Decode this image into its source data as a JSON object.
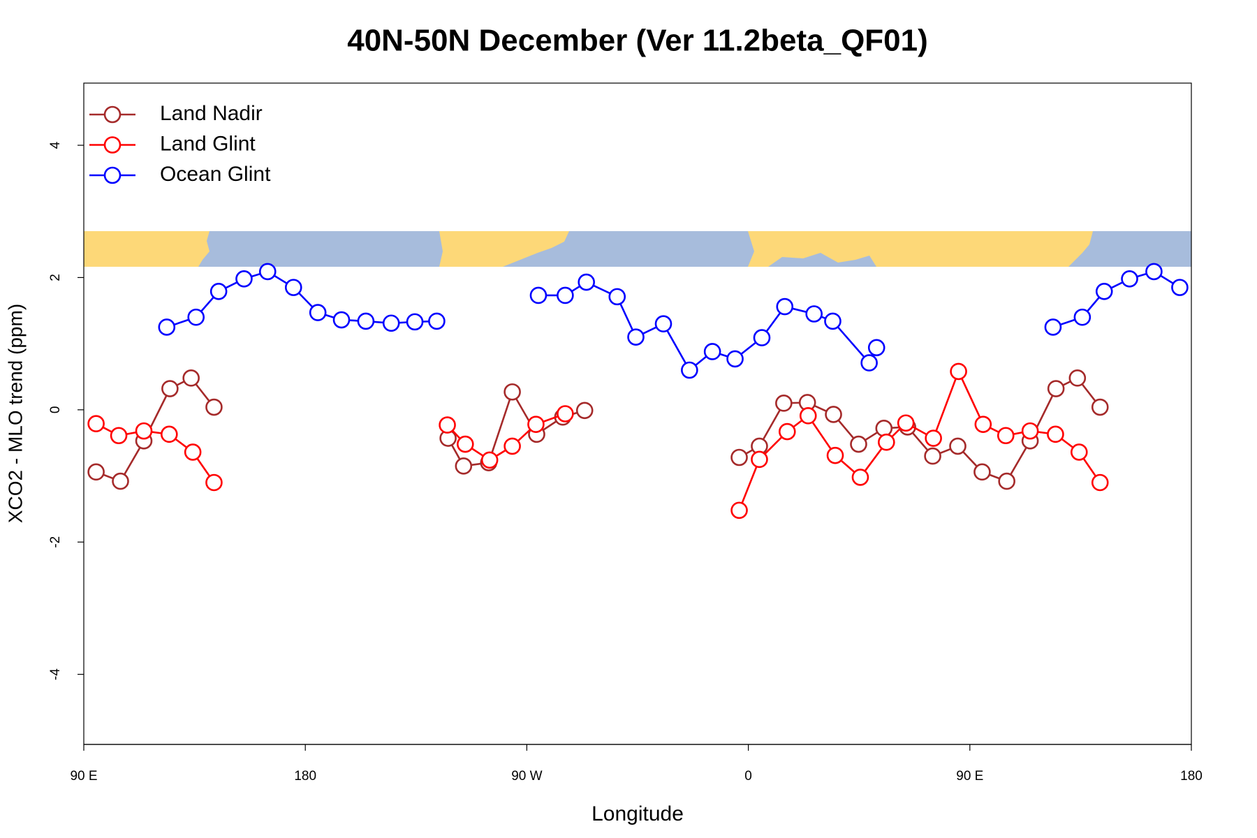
{
  "chart_data": {
    "type": "line",
    "title": "40N-50N December (Ver 11.2beta_QF01)",
    "x_label": "Longitude",
    "y_label": "XCO2 - MLO trend (ppm)",
    "xlim": [
      90,
      540
    ],
    "ylim": [
      -5.06,
      4.94
    ],
    "xticks": [
      {
        "value": 90,
        "label": "90 E"
      },
      {
        "value": 180,
        "label": "180"
      },
      {
        "value": 270,
        "label": "90 W"
      },
      {
        "value": 360,
        "label": "0"
      },
      {
        "value": 450,
        "label": "90 E"
      },
      {
        "value": 540,
        "label": "180"
      }
    ],
    "yticks": [
      -4,
      -2,
      0,
      2,
      4
    ],
    "legend": "top-left",
    "series": [
      {
        "name": "Land Nadir",
        "color": "#a52a2a",
        "x": [
          95,
          104.9,
          114.4,
          125,
          133.6,
          142.9,
          null,
          238,
          244.3,
          254.5,
          264.1,
          274,
          284.6,
          293.5,
          null,
          356.3,
          364.5,
          374.4,
          384,
          394.6,
          404.8,
          415.1,
          424.7,
          434.9,
          445.1,
          455,
          465,
          474.5,
          485,
          493.7,
          502.9
        ],
        "values": [
          -0.94,
          -1.08,
          -0.47,
          0.32,
          0.48,
          0.04,
          null,
          -0.43,
          -0.85,
          -0.8,
          0.27,
          -0.37,
          -0.11,
          -0.01,
          null,
          -0.72,
          -0.55,
          0.1,
          0.11,
          -0.07,
          -0.52,
          -0.28,
          -0.26,
          -0.7,
          -0.55,
          -0.94,
          -1.08,
          -0.47,
          0.32,
          0.48,
          0.04
        ]
      },
      {
        "name": "Land Glint",
        "color": "#ff0000",
        "x": [
          95,
          104.2,
          114.4,
          124.7,
          134.3,
          142.9,
          null,
          237.7,
          245,
          254.9,
          264.1,
          273.7,
          285.6,
          null,
          356.3,
          364.5,
          375.8,
          384.3,
          395.3,
          405.5,
          416.1,
          424,
          435.2,
          445.4,
          455.4,
          464.6,
          474.5,
          484.8,
          494.4,
          502.9
        ],
        "values": [
          -0.21,
          -0.39,
          -0.32,
          -0.37,
          -0.64,
          -1.1,
          null,
          -0.23,
          -0.52,
          -0.76,
          -0.55,
          -0.22,
          -0.06,
          null,
          -1.52,
          -0.75,
          -0.33,
          -0.09,
          -0.69,
          -1.02,
          -0.49,
          -0.2,
          -0.43,
          0.58,
          -0.22,
          -0.39,
          -0.32,
          -0.37,
          -0.64,
          -1.1
        ]
      },
      {
        "name": "Ocean Glint",
        "color": "#0000ff",
        "x": [
          123.7,
          135.6,
          144.8,
          155.1,
          164.7,
          175.2,
          185.1,
          194.7,
          204.6,
          214.9,
          224.5,
          233.4,
          null,
          274.7,
          285.6,
          294.2,
          306.7,
          314.3,
          325.5,
          336.1,
          345.4,
          354.6,
          365.5,
          374.8,
          386.7,
          394.3,
          409.1,
          412.1,
          null,
          483.8,
          495.7,
          504.6,
          514.9,
          524.8,
          535.3
        ],
        "values": [
          1.25,
          1.4,
          1.79,
          1.98,
          2.09,
          1.85,
          1.47,
          1.36,
          1.34,
          1.31,
          1.33,
          1.34,
          null,
          1.73,
          1.73,
          1.93,
          1.71,
          1.1,
          1.3,
          0.6,
          0.88,
          0.77,
          1.09,
          1.56,
          1.45,
          1.34,
          0.71,
          0.94,
          null,
          1.25,
          1.4,
          1.79,
          1.98,
          2.09,
          1.85
        ]
      }
    ]
  }
}
